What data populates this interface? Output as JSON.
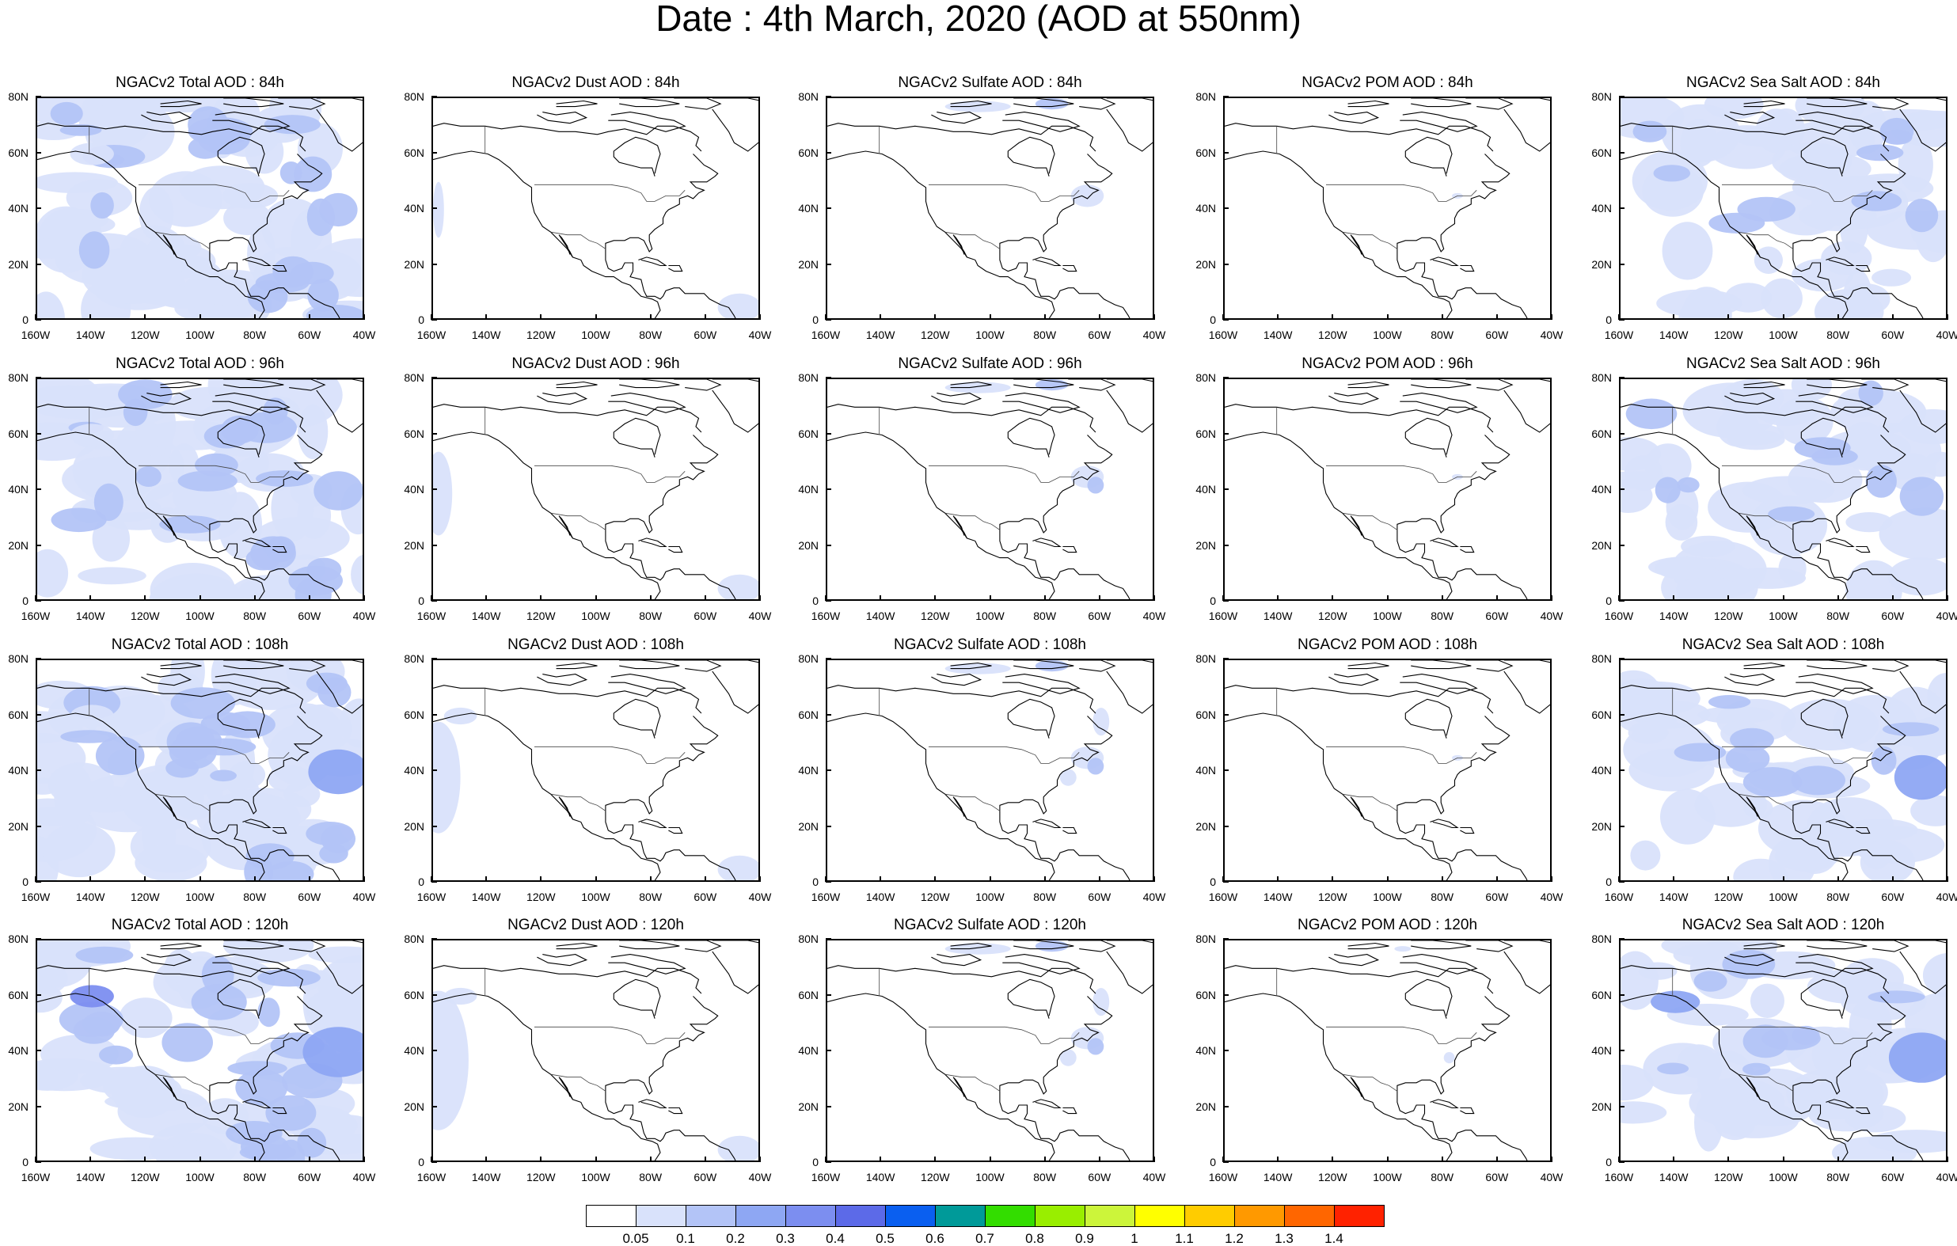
{
  "title": "Date : 4th March, 2020 (AOD at 550nm)",
  "columns": [
    {
      "key": "total",
      "name": "Total"
    },
    {
      "key": "dust",
      "name": "Dust"
    },
    {
      "key": "sulfate",
      "name": "Sulfate"
    },
    {
      "key": "pom",
      "name": "POM"
    },
    {
      "key": "seasalt",
      "name": "Sea Salt"
    }
  ],
  "panels": [
    [
      "NGACv2 Total AOD : 84h",
      "NGACv2 Dust AOD : 84h",
      "NGACv2 Sulfate AOD : 84h",
      "NGACv2 POM AOD : 84h",
      "NGACv2 Sea Salt AOD : 84h"
    ],
    [
      "NGACv2 Total AOD : 96h",
      "NGACv2 Dust AOD : 96h",
      "NGACv2 Sulfate AOD : 96h",
      "NGACv2 POM AOD : 96h",
      "NGACv2 Sea Salt AOD : 96h"
    ],
    [
      "NGACv2 Total AOD : 108h",
      "NGACv2 Dust AOD : 108h",
      "NGACv2 Sulfate AOD : 108h",
      "NGACv2 POM AOD : 108h",
      "NGACv2 Sea Salt AOD : 108h"
    ],
    [
      "NGACv2 Total AOD : 120h",
      "NGACv2 Dust AOD : 120h",
      "NGACv2 Sulfate AOD : 120h",
      "NGACv2 POM AOD : 120h",
      "NGACv2 Sea Salt  AOD : 120h"
    ]
  ],
  "lat_labels": [
    "80N",
    "60N",
    "40N",
    "20N",
    "0"
  ],
  "lon_labels": [
    "160W",
    "140W",
    "120W",
    "100W",
    "80W",
    "60W",
    "40W"
  ],
  "colorbar": {
    "labels": [
      "0.05",
      "0.1",
      "0.2",
      "0.3",
      "0.4",
      "0.5",
      "0.6",
      "0.7",
      "0.8",
      "0.9",
      "1",
      "1.1",
      "1.2",
      "1.3",
      "1.4"
    ],
    "colors": [
      "#ffffff",
      "#d9e2fb",
      "#b3c4f7",
      "#8ea7f3",
      "#7c8ef0",
      "#5c6ae8",
      "#0a5ff0",
      "#009a99",
      "#33dd00",
      "#99ee00",
      "#ccf53a",
      "#ffff00",
      "#ffcc00",
      "#ff9900",
      "#ff6600",
      "#ff2200"
    ]
  }
}
